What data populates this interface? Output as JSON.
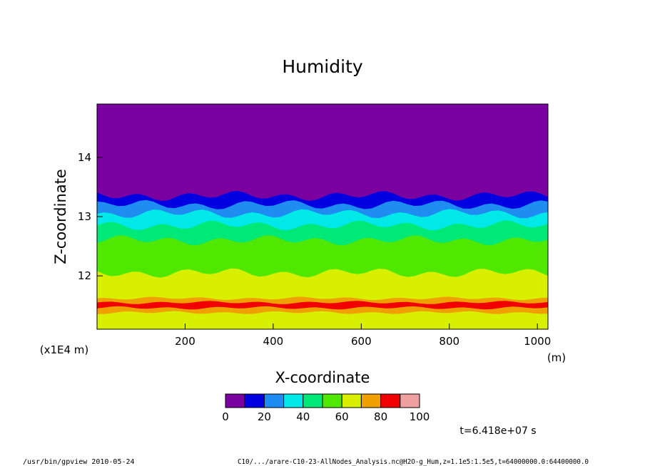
{
  "chart_data": {
    "type": "heatmap",
    "title": "Humidity",
    "xlabel": "X-coordinate",
    "ylabel": "Z-coordinate",
    "x_unit": "(m)",
    "y_scale_label": "(x1E4 m)",
    "xlim": [
      0,
      1024
    ],
    "ylim": [
      11.1,
      14.9
    ],
    "x_ticks": [
      "200",
      "400",
      "600",
      "800",
      "1000"
    ],
    "y_ticks": [
      "12",
      "13",
      "14"
    ],
    "colorbar": {
      "levels": [
        0,
        10,
        20,
        30,
        40,
        50,
        60,
        70,
        80,
        90,
        100
      ],
      "tick_labels": [
        "0",
        "20",
        "40",
        "60",
        "80",
        "100"
      ],
      "colors": [
        "#7a00a0",
        "#0000e0",
        "#1e8cf0",
        "#00e8e8",
        "#00e878",
        "#50e800",
        "#d8f000",
        "#f0a000",
        "#f00000",
        "#f0a0a0"
      ]
    },
    "bands": [
      {
        "z_top": 11.25,
        "value": 60
      },
      {
        "z_top": 11.38,
        "value": 65
      },
      {
        "z_top": 11.46,
        "value": 75
      },
      {
        "z_top": 11.55,
        "value": 80
      },
      {
        "z_top": 11.62,
        "value": 75
      },
      {
        "z_top": 11.85,
        "value": 65
      },
      {
        "z_top": 12.05,
        "value": 60
      },
      {
        "z_top": 12.35,
        "value": 55
      },
      {
        "z_top": 12.6,
        "value": 50
      },
      {
        "z_top": 12.85,
        "value": 45
      },
      {
        "z_top": 13.05,
        "value": 35
      },
      {
        "z_top": 13.2,
        "value": 25
      },
      {
        "z_top": 13.35,
        "value": 15
      },
      {
        "z_top": 14.9,
        "value": 5
      }
    ]
  },
  "annotations": {
    "time": "t=6.418e+07 s",
    "footer_left": "/usr/bin/gpview   2010-05-24",
    "footer_right": "C10/.../arare-C10-23-AllNodes_Analysis.nc@H2O-g_Hum,z=1.1e5:1.5e5,t=64000000.0:64400000.0"
  }
}
